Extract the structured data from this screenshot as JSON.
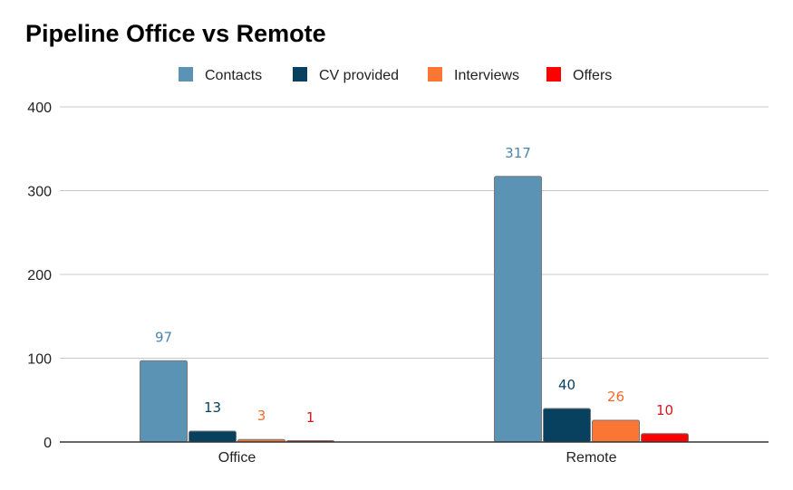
{
  "chart_data": {
    "type": "bar",
    "title": "Pipeline Office vs Remote",
    "xlabel": "",
    "ylabel": "",
    "ylim": [
      0,
      400
    ],
    "yticks": [
      0,
      100,
      200,
      300,
      400
    ],
    "categories": [
      "Office",
      "Remote"
    ],
    "series": [
      {
        "name": "Contacts",
        "values": [
          97,
          317
        ],
        "color": "#5b93b5",
        "label_color": "#4a86ab"
      },
      {
        "name": "CV provided",
        "values": [
          13,
          40
        ],
        "color": "#07415f",
        "label_color": "#07415f"
      },
      {
        "name": "Interviews",
        "values": [
          3,
          26
        ],
        "color": "#f97635",
        "label_color": "#f26a2a"
      },
      {
        "name": "Offers",
        "values": [
          1,
          10
        ],
        "color": "#ff0000",
        "label_color": "#d11a1a"
      }
    ],
    "grid": true,
    "legend_position": "top-center"
  }
}
